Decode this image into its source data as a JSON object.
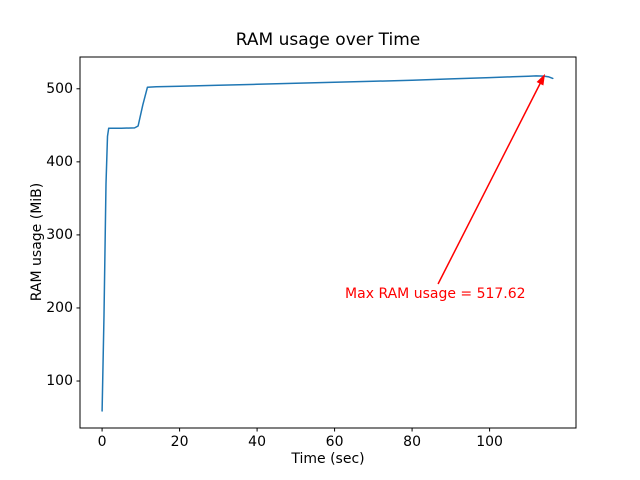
{
  "figure": {
    "background": "#ffffff",
    "text_color": "#000000",
    "spine_color": "#000000"
  },
  "chart_data": {
    "type": "line",
    "title": "RAM usage over Time",
    "xlabel": "Time (sec)",
    "ylabel": "RAM usage (MiB)",
    "xlim": [
      -5.7,
      122.3
    ],
    "ylim": [
      35.7,
      543.5
    ],
    "x_ticks": [
      0,
      20,
      40,
      60,
      80,
      100
    ],
    "y_ticks": [
      100,
      200,
      300,
      400,
      500
    ],
    "grid": false,
    "legend": "none",
    "series": [
      {
        "name": "RAM usage",
        "color": "#1f77b4",
        "points": [
          [
            0,
            59
          ],
          [
            0.5,
            190
          ],
          [
            1.0,
            370
          ],
          [
            1.4,
            435
          ],
          [
            1.7,
            446
          ],
          [
            5,
            446
          ],
          [
            8.4,
            446.5
          ],
          [
            9.3,
            449
          ],
          [
            10.5,
            478
          ],
          [
            11.7,
            502
          ],
          [
            14,
            502.8
          ],
          [
            20,
            503.6
          ],
          [
            30,
            504.9
          ],
          [
            40,
            506.2
          ],
          [
            50,
            507.5
          ],
          [
            60,
            508.9
          ],
          [
            70,
            510.3
          ],
          [
            80,
            511.8
          ],
          [
            90,
            513.5
          ],
          [
            100,
            515.3
          ],
          [
            106,
            516.4
          ],
          [
            110,
            517.2
          ],
          [
            112,
            517.62
          ],
          [
            114,
            517.4
          ],
          [
            115.3,
            516.2
          ],
          [
            116.3,
            514.2
          ]
        ]
      }
    ],
    "annotation": {
      "text": "Max RAM usage = 517.62",
      "color": "#ff0000",
      "max_value": 517.62,
      "xy": [
        112,
        517.62
      ],
      "text_pos": [
        62.7,
        230
      ],
      "arrow": {
        "x1": 86.7,
        "y1": 232.8,
        "x2": 114.3,
        "y2": 520.3
      }
    }
  }
}
